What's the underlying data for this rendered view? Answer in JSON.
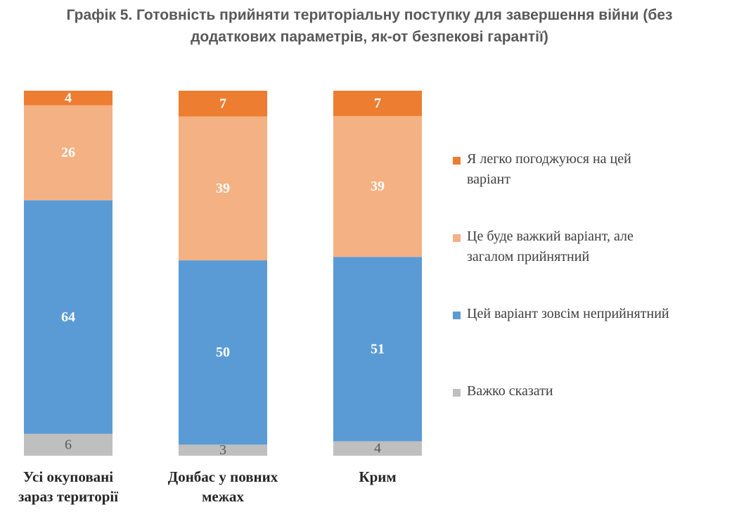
{
  "chart_data": {
    "type": "bar",
    "stacked": true,
    "title": "Графік 5. Готовність прийняти територіальну поступку для завершення війни (без додаткових параметрів, як-от безпекові гарантії)",
    "title_lines": [
      "Графік 5. Готовність прийняти територіальну поступку для завершення війни (без",
      "додаткових параметрів, як-от безпекові гарантії)"
    ],
    "categories": [
      "Усі окуповані зараз території",
      "Донбас у повних межах",
      "Крим"
    ],
    "category_lines": [
      [
        "Усі окуповані",
        "зараз території"
      ],
      [
        "Донбас у повних",
        "межах"
      ],
      [
        "Крим"
      ]
    ],
    "series": [
      {
        "name": "Важко сказати",
        "values": [
          6,
          3,
          4
        ],
        "color": "#bfbfbf",
        "label_color": "#595959",
        "label_bold": false
      },
      {
        "name": "Цей варіант зовсім неприйнятний",
        "values": [
          64,
          50,
          51
        ],
        "color": "#5b9bd5",
        "label_color": "#ffffff",
        "label_bold": true
      },
      {
        "name": "Це буде важкий варіант, але загалом прийнятний",
        "values": [
          26,
          39,
          39
        ],
        "color": "#f4b183",
        "label_color": "#ffffff",
        "label_bold": true
      },
      {
        "name": "Я легко погоджуюся на цей варіант",
        "values": [
          4,
          7,
          7
        ],
        "color": "#ed7d31",
        "label_color": "#ffffff",
        "label_bold": true
      }
    ],
    "legend": [
      {
        "lines": [
          "Я легко погоджуюся на цей",
          "варіант"
        ],
        "color": "#ed7d31"
      },
      {
        "lines": [
          "Це буде важкий варіант, але",
          "загалом прийнятний"
        ],
        "color": "#f4b183"
      },
      {
        "lines": [
          "Цей варіант зовсім неприйнятний"
        ],
        "color": "#5b9bd5"
      },
      {
        "lines": [
          "Важко сказати"
        ],
        "color": "#bfbfbf"
      }
    ],
    "legend_position": "right",
    "ylim": [
      0,
      100
    ],
    "grid": false
  }
}
